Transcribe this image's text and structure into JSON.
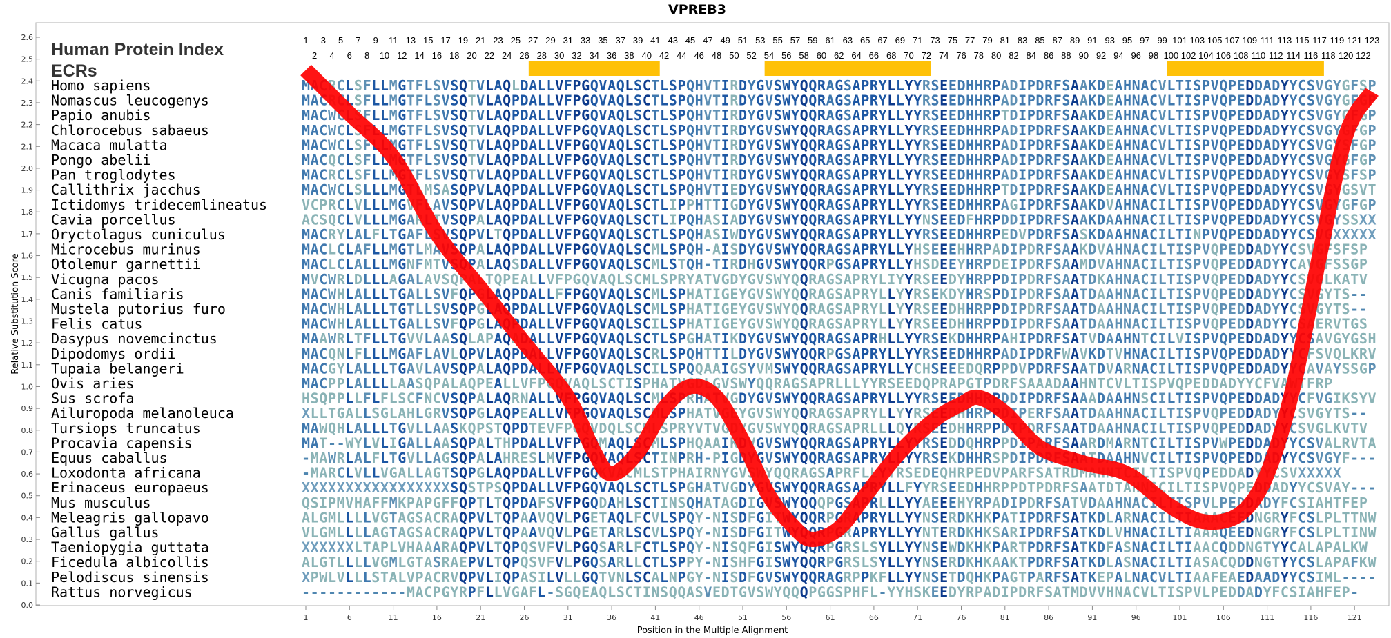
{
  "chart_data": {
    "type": "multiple-sequence-alignment",
    "title": "VPREB3",
    "ylabel": "Relative Substitution Score",
    "xlabel": "Position in the Multiple Alignment",
    "ylim": [
      0.0,
      2.6
    ],
    "y_ticks": [
      "0.0",
      "0.1",
      "0.2",
      "0.3",
      "0.4",
      "0.5",
      "0.6",
      "0.7",
      "0.8",
      "0.9",
      "1.0",
      "1.1",
      "1.2",
      "1.3",
      "1.4",
      "1.5",
      "1.6",
      "1.7",
      "1.8",
      "1.9",
      "2.0",
      "2.1",
      "2.2",
      "2.3",
      "2.4",
      "2.5",
      "2.6"
    ],
    "x_ticks": [
      1,
      6,
      11,
      16,
      21,
      26,
      31,
      36,
      41,
      46,
      51,
      56,
      61,
      66,
      71,
      76,
      81,
      86,
      91,
      96,
      101,
      106,
      111,
      116,
      121
    ],
    "alignment_length": 123,
    "header_label": "Human Protein Index",
    "ecr_label": "ECRs",
    "ecr_color": "#ffc107",
    "curve_color": "#ff0000",
    "ecrs": [
      [
        27,
        41
      ],
      [
        54,
        72
      ],
      [
        100,
        117
      ]
    ],
    "species": [
      {
        "name": "Homo sapiens",
        "seq": "MACRCLSFLLMGTFLSVSQTVLAQLDALLVFPGQVAQLSCTLSPQHVTIRDYGVSWYQQRAGSAPRYLLYYRSEEDHHRPADIPDRFSAAKDEAHNACVLTISPVQPEDDADYYCSVGYGFSP"
      },
      {
        "name": "Nomascus leucogenys",
        "seq": "MACRCLSFLLMGTFLSVSQTVLAQPDALLVFPGQVAQLSCTLSPQHVTIRDYGVSWYQQRAGSAPRYLLYYRSEEDHHRPADIPDRFSAAKDEAHNACVLTISPVQPEDDADYYCSVGYGFGP"
      },
      {
        "name": "Papio anubis",
        "seq": "MACWCLSFLLMGTFLSVSQTVLAQPDALLVFPGQVAQLSCTLSPQHVTIRDYGVSWYQQRAGSAPRYLLYYRSEEDHHRPTDIPDRFSAAKDEAHNACVLTISPVQPEDDADYYCSVGYGFGP"
      },
      {
        "name": "Chlorocebus sabaeus",
        "seq": "MACWCLSFLLMGTFLSVSQTVLAQPDALLVFPGQVAQLSCTLSPQHVTIRDYGVSWYQQRAGSAPRYLLYYRSEEDHHRPADIPDRFSAAKDEAHNACVLTISPVQPEDDADYYCSVGYGFGP"
      },
      {
        "name": "Macaca mulatta",
        "seq": "MACWCLSFLLMGTFLSVSQTVLAQPDALLVFPGQVAQLSCTLSPQHVTIRDYGVSWYQQRAGSAPRYLLYYRSEEDHHRPADIPDRFSAAKDEAHNACVLTISPVQPEDDADYYCSVGYSFGP"
      },
      {
        "name": "Pongo abelii",
        "seq": "MACQCLSFLLMGTFLSVSQTVLAQPDALLVFPGQVAQLSCTLSPQHVTIRDYGVSWYQQRAGSAPRYLLYYRSEEDHHRPADIPDRFSAAKDEAHNACVLTISPVQPEDDADYYCSVGYGFGP"
      },
      {
        "name": "Pan troglodytes",
        "seq": "MACRCLSFLLMGTFLSVSQTVLAQPDALLVFPGQVAQLSCTLSPQHVTIRDYGVSWYQQRAGSAPRYLLYYRSEEDHHRPADIPDRFSAAKDEAHNACVLTISPVQPEDDADYYCSVGYSFSP"
      },
      {
        "name": "Callithrix jacchus",
        "seq": "MACWCLSLLLMGTLMSASQPVLAQPDALLVFPGQVAQLSCTLSPQHVTIEDYGVSWYQQRAGSAPRYLLYYRSEEDHHRPTDIPDRFSAAKDEAHNACVLTISPVQPEDDADYYCSVGYGSVT"
      },
      {
        "name": "Ictidomys tridecemlineatus",
        "seq": "VCPRCLVLLLMGVFLAVSQPVLAQPDALLVFPGQVAQLSCTLIPPHTTIGDYGVSWYQQRAGSAPRYLLYYRSEEDHHRPAGIPDRFSAAKDVAHNACILTISPVQPEDDADYYCSVGYGFGP"
      },
      {
        "name": "Cavia porcellus",
        "seq": "ACSQCLVLLLMGARLTVSQPALAQPDALLVFPGQVAQLSCTLIPQHASIADYGVSWYQQRAGSAPRYLLYYNSEEDFHRPDDIPDRFSAAKDAAHNACILTISPVQPEDDADYYCSVGYSSXX"
      },
      {
        "name": "Oryctolagus cuniculus",
        "seq": "MACRYLALFLTGAFLSVSQPVLTQPDALLVFPGQVAQLSCTLSPQHASIWDYGVSWYQQRAGSAPRYLLYYRSEEDHHRPEDVPDRFSASKDAAHNACILTINPVQPEDDADYYCSVGXXXXX"
      },
      {
        "name": "Microcebus murinus",
        "seq": "MACLCLAFLLMGTLMAVSQPALAQPDALLVFPGQVAQLSCMLSPQH-AISDYGVSWYQQRAGSAPRYLLYHSEEEHHRPADIPDRFSAAKDVAHNACILTISPVQPEDDADYYCSVGFSFSP"
      },
      {
        "name": "Otolemur garnettii",
        "seq": "MACLCLALLLMGNFMTVSQPALAQSDALLVFPGQVAQLSCMLSTQH-TIRDHGVSWYQQRPGSAPRYLLYHSDEEYHRPDEIPDRFSAAMDVAHNACILTISPVQPEDDADYYCAVGFSSGP"
      },
      {
        "name": "Vicugna pacos",
        "seq": "MVCWRLDLLLAGALAVSQPALTQPEALLVFPGQVAQLSCMLSPRYATVGDYGVSWYQQRAGSAPRYLIYYRSEEDYHRPPDIPDRFSAATDKAHNACILTISPVQPEDDADYYCSVGLKATV"
      },
      {
        "name": "Canis familiaris",
        "seq": "MACWHLALLLTGALLSVFQPGLAQPDALLFFPGQVAQLSCMLSPHATIGEYGVSWYQQRAGSAPRYLLYYRSEKDYHRSPDIPDRFSAATDAAHNACILTISPVQPEDDADYYCSVGYTS--"
      },
      {
        "name": "Mustela putorius furo",
        "seq": "MACWHLALLLTGTLLSVSQPGLAQPDALLVFPGQVAQLSCMLSPHATIGEYGVSWYQQRAGSAPRYLLYYRSEEDHHRPPDIPDRFSAATDAAHNACILTISPVQPEDDADYYCSVGYTS--"
      },
      {
        "name": "Felis catus",
        "seq": "MACWHLALLLTGALLSVFQPGLAQPDALLVFPGQVAQLSCILSPHATIGEYGVSWYQQRAGSAPRYLLYYRSEEDHHRPPDIPDRFSAATDAAHNACILTISPVQPEDDADYYCSAERVTGS"
      },
      {
        "name": "Dasypus novemcinctus",
        "seq": "MAAWRLTFLLTGVVLAASQLAPAQADALLVFPGQVAQLSCTLSPGHATIKDYGVSWYQQRAGSAPRHLLYYRSEKDHHRPAHIPDRFSATVDAAHNTCILVISPVQPEDDADYYCSAVGYGSHP"
      },
      {
        "name": "Dipodomys ordii",
        "seq": "MACQNLFLLLMGAFLAVLQPVLAQPDALLVFPGQVAQLSCRLSPQHTTILDYGVSWYQQRPGSAPRYLLYYRSEEDHHRPADIPDRFWAVKDTVHNACILTISPVQPEDDADYYCFSVQLKRVG"
      },
      {
        "name": "Tupaia belangeri",
        "seq": "MACGYLALLLTGAVLAVSQPALAQPDALLVFPGQVAQLSCILSPQQAAIGSYVMSWYQQRAGSAPRYLLYCHSEEEDQRPPDVPDRFSAATDVARNACILTISPVQPEDDADYYCAVAYSSGP"
      },
      {
        "name": "Ovis aries",
        "seq": "MACPPLALLLLAASQPALAQPEALLVFPGQVAQLSCTISPHATVGDLGVSWYQQRAGSAPRLLLYYRSEEDQPRAPGTPDRFSAAADAAHNTCVLTISPVQPEDDADYYCFVAWTFRP"
      },
      {
        "name": "Sus scrofa",
        "seq": "HSQPPLLFLFLSCFNCVSQPALAQRNALLVFPGQVAQLSCMLSPRHATVGDYGVSWYQQRAGSAPRYLLYYRSEEDHHRPDDIPDRFSAAADAAHNSCILTISPVQPEDDADYYCFVGIKSYV"
      },
      {
        "name": "Ailuropoda melanoleuca",
        "seq": "XLLTGALLSGLAHLGRVSQPGLAQPEALLVFPGQVAQLSCMLSPHATVGEYGVSWYQQRAGSAPRYLLYYRSEEDHHRPPDIPERFSAATDAAHNACILTISPVQPEDDADYYCSVGYTS--"
      },
      {
        "name": "Tursiops truncatus",
        "seq": "MAWQHLALLLTGVLLAASKQPSTQPDTEVFPGQVDQLSCMLSPRYVTVGDYGVSWYQQRAGSAPRLLLQYRSEEDHHRPPDIPDRFSAATDAAHNACILTISPVQPEDDADYYCSVGLKVTV"
      },
      {
        "name": "Procavia capensis",
        "seq": "MAT--WYLVLIGALLAASQPALTHPDALLVFPGQMAQLSCMLSPHQAAIKDVGVSWYQQRAGSAPRYLLYYRSEDDQHRPPDIPARFSAARDMARNTCILTISPVWPEDDADYYCSVALRVTA"
      },
      {
        "name": "Equus caballus",
        "seq": "-MAWRLALFLTGVLLAGSQPALAHRESLMVFPGQVAQLSCTINPRH-PIGDYGVSWYQQRAGSAPRYLLYYRSEKDHHRSPDIPDRFSAATDAAHNVCILTISPVQPEDDADYYCSVGYF---"
      },
      {
        "name": "Loxodonta africana",
        "seq": "-MARCLVLLVGALLAGTSQPGLAQPDALLVFPGQKVACMLSTPHAIRNYGVSWYQQRAGSAPRFLLYYRSEDEQHRPEDVPARFSATRDMAHNTCILTISPVQPEDDADYYCSVXXXXX"
      },
      {
        "name": "Erinaceus europaeus",
        "seq": "XXXXXXXXXXXXXXXXXSQSTPSQPDALLVFPGQVAQLSCTLSPGHATVGDYGVSWYQQRAGSAPRYLLFYYRSEEDHHRPPDTPDRFSAATDTAHNSCILTISPVQPEDDADYYCSVAY---"
      },
      {
        "name": "Mus musculus",
        "seq": "QSIPMVHAFFMKPAPGFFQPTLTQPDAFSVFPGQDAHLSCTINSQHATAGDIGVSWYQQQPGSAPRLLLYYAEEEHYRPADIPDRFSATVDAAHNACILTISPVLPEDDADYFCSIAHTFEP"
      },
      {
        "name": "Meleagris gallopavo",
        "seq": "ALGMLLLLVGTAGSACRAQPVLTQPAAVQVLPGETAQLFCVLSPQY-NISDFGITWYQQRPGRAPRYLLYYNSERDKHKPATIPDRFSATKDLARNACILTIAAACEEDNGRYFCSLPLTTNW"
      },
      {
        "name": "Gallus gallus",
        "seq": "VLGMLLLLAGTAGSACRAQPVLTQPAAVQVLPGETARLSCVLSPQY-NISDFGITWYQQRPGRAPRYLLYYNTERDKHKSARIPDRFSATKDLVHNACILTIAAAQEEDNGRYFCSLPLTINW"
      },
      {
        "name": "Taeniopygia guttata",
        "seq": "XXXXXXLTAPLVHAAARAQPVLTQPQSVFVLPGQSARLFCTLSPQY-NISQFGISWYQQRPGRSLSYLLYYNSEWDKHKPARTPDRFSATKDFASNACILTIAACQDDNGTYYCALAPALKW"
      },
      {
        "name": "Ficedula albicollis",
        "seq": "ALGTLLLLVGMLGTASRAEPVLTQPQSVFVLPGQSARLLCTLSPPY-NISHFGISWYQQRPGRSLSYLLYYNSERDKHKAAKTPDRFSATKDLASNACILTIASACQDDNGTYYCSLAPAFKW"
      },
      {
        "name": "Pelodiscus sinensis",
        "seq": "XPWLVLLLSTALVPACRVQPVLIQPASILVLLGQTVNLSCALNPGY-NISDFGVSWYQQRAGRPPKFLLYYNSETDQHKPAGTPARFSATKEPALNACVLTIAAFEAEDAADYYCSIML----"
      },
      {
        "name": "Rattus norvegicus",
        "seq": "------------MACPGYRPFLLVGAFL-SGQEAQLSCTINSQQASVEDTGVSWYQQQPGGSPHFL-YYHSKEEDYRPADIPDRFSATMDVVHNACVLTISPVLPEDDADYFCSIAHFEP-"
      }
    ],
    "conservation_curve": [
      [
        1,
        2.45
      ],
      [
        6,
        2.25
      ],
      [
        11,
        2.05
      ],
      [
        16,
        1.7
      ],
      [
        21,
        1.45
      ],
      [
        26,
        1.2
      ],
      [
        31,
        0.95
      ],
      [
        34,
        0.7
      ],
      [
        36,
        0.6
      ],
      [
        39,
        0.7
      ],
      [
        42,
        0.9
      ],
      [
        45,
        1.0
      ],
      [
        48,
        0.95
      ],
      [
        51,
        0.75
      ],
      [
        54,
        0.5
      ],
      [
        57,
        0.35
      ],
      [
        59,
        0.3
      ],
      [
        62,
        0.35
      ],
      [
        65,
        0.5
      ],
      [
        69,
        0.7
      ],
      [
        73,
        0.85
      ],
      [
        76,
        0.92
      ],
      [
        78,
        0.95
      ],
      [
        81,
        0.88
      ],
      [
        85,
        0.72
      ],
      [
        90,
        0.65
      ],
      [
        95,
        0.6
      ],
      [
        100,
        0.45
      ],
      [
        104,
        0.38
      ],
      [
        108,
        0.42
      ],
      [
        111,
        0.6
      ],
      [
        114,
        1.0
      ],
      [
        117,
        1.6
      ],
      [
        120,
        2.15
      ],
      [
        123,
        2.35
      ]
    ]
  }
}
